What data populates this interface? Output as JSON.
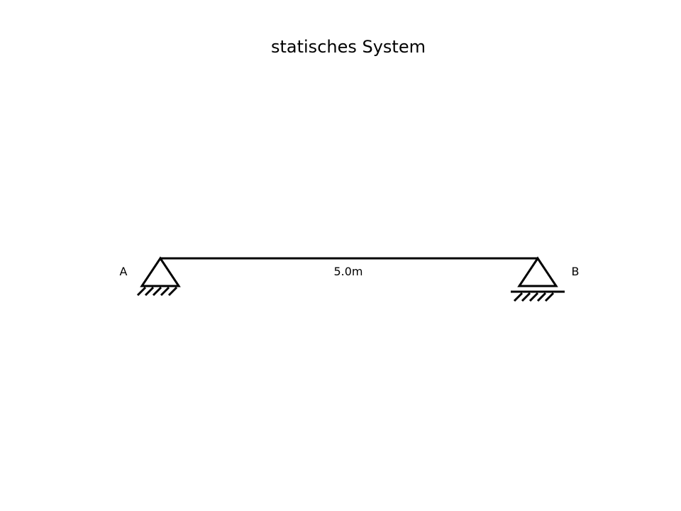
{
  "title": "statisches System",
  "span_label": "5.0m",
  "supports": {
    "left": {
      "label": "A",
      "type": "pinned"
    },
    "right": {
      "label": "B",
      "type": "roller"
    }
  },
  "colors": {
    "line": "#000000",
    "background": "#ffffff"
  }
}
